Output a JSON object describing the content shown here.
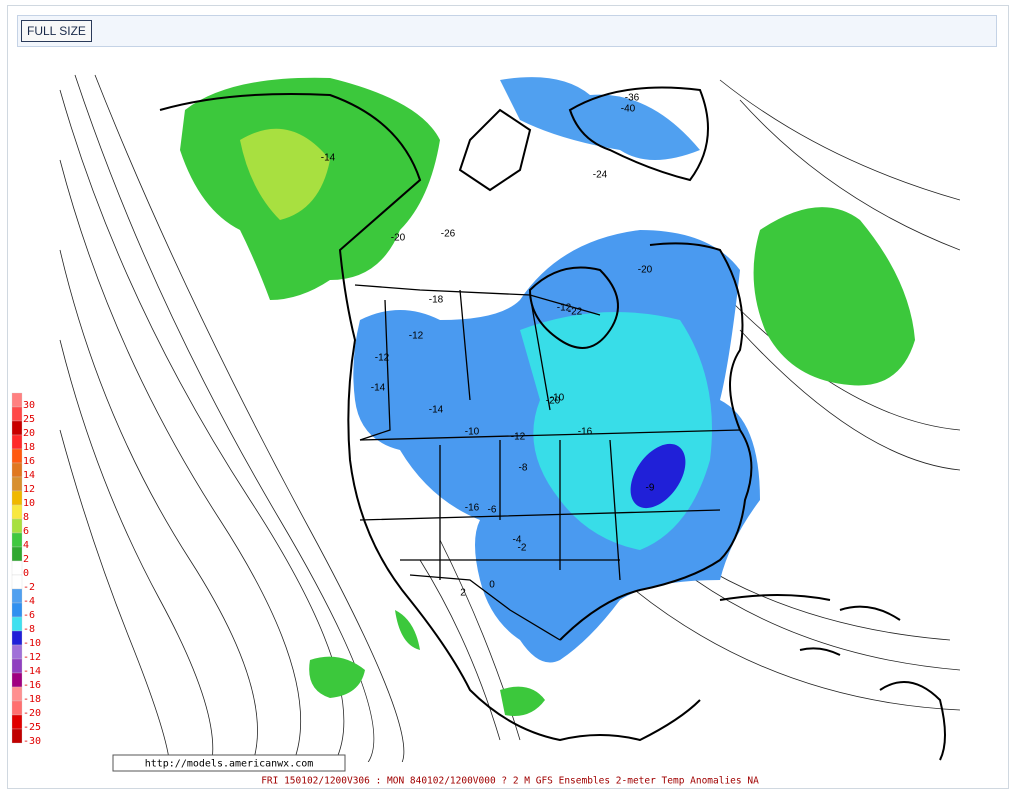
{
  "toolbar": {
    "button": "FULL SIZE"
  },
  "map": {
    "legend": [
      {
        "label": "30",
        "color": "#ff8080"
      },
      {
        "label": "25",
        "color": "#ff4848"
      },
      {
        "label": "20",
        "color": "#c80000"
      },
      {
        "label": "18",
        "color": "#ff2a2a"
      },
      {
        "label": "16",
        "color": "#ff5a10"
      },
      {
        "label": "14",
        "color": "#e07820"
      },
      {
        "label": "12",
        "color": "#d89030"
      },
      {
        "label": "10",
        "color": "#f0b800"
      },
      {
        "label": "8",
        "color": "#f8e840"
      },
      {
        "label": "6",
        "color": "#a8e040"
      },
      {
        "label": "4",
        "color": "#40c840"
      },
      {
        "label": "2",
        "color": "#30a830"
      },
      {
        "label": "0",
        "color": "#ffffff"
      },
      {
        "label": "-2",
        "color": "#ffffff"
      },
      {
        "label": "-4",
        "color": "#50a0f0"
      },
      {
        "label": "-6",
        "color": "#3090f0"
      },
      {
        "label": "-8",
        "color": "#40e0f0"
      },
      {
        "label": "-10",
        "color": "#2020d8"
      },
      {
        "label": "-12",
        "color": "#a070d8"
      },
      {
        "label": "-14",
        "color": "#9040c0"
      },
      {
        "label": "-16",
        "color": "#a00080"
      },
      {
        "label": "-18",
        "color": "#ff9090"
      },
      {
        "label": "-20",
        "color": "#ff7070"
      },
      {
        "label": "-25",
        "color": "#e00000"
      },
      {
        "label": "-30",
        "color": "#c00000"
      }
    ],
    "contour_labels": [
      "-14",
      "-20",
      "-18",
      "-12",
      "-12",
      "-14",
      "-14",
      "-10",
      "-12",
      "-8",
      "-16",
      "-4",
      "-2",
      "0",
      "2",
      "-6",
      "-20",
      "-24",
      "-36",
      "-40",
      "-12",
      "-22",
      "-10",
      "-20",
      "-26",
      "-9",
      "-16"
    ],
    "url": "http://models.americanwx.com",
    "caption": "FRI 150102/1200V306 : MON 840102/1200V000  ? 2 M GFS Ensembles 2-meter Temp Anomalies NA"
  }
}
